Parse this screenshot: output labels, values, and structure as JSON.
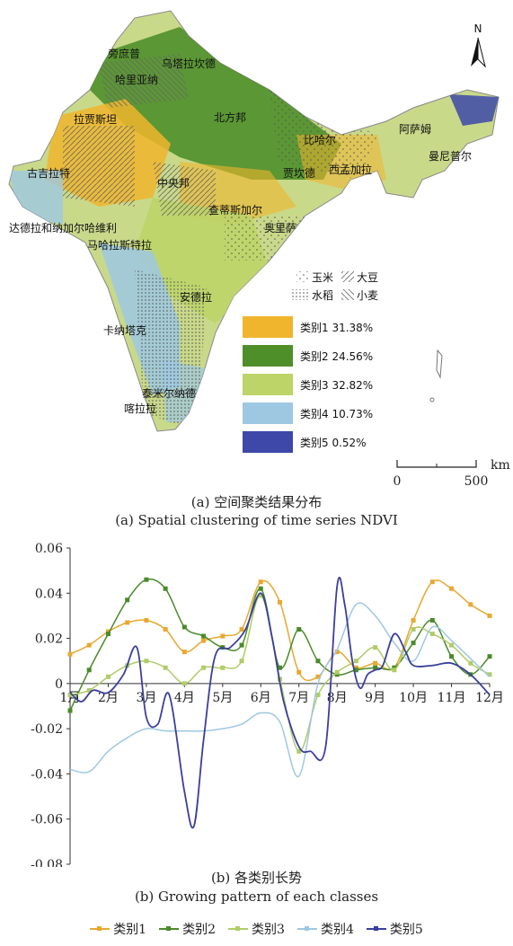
{
  "map": {
    "north_label": "N",
    "scale_unit": "km",
    "scale_ticks": [
      "0",
      "500"
    ],
    "region_labels": [
      {
        "text": "旁庶普"
      },
      {
        "text": "乌塔拉坎德"
      },
      {
        "text": "哈里亚纳"
      },
      {
        "text": "拉贾斯坦"
      },
      {
        "text": "北方邦"
      },
      {
        "text": "比哈尔"
      },
      {
        "text": "阿萨姆"
      },
      {
        "text": "曼尼普尔"
      },
      {
        "text": "古吉拉特"
      },
      {
        "text": "贾坎德"
      },
      {
        "text": "西孟加拉"
      },
      {
        "text": "中央邦"
      },
      {
        "text": "查蒂斯加尔"
      },
      {
        "text": "奥里萨"
      },
      {
        "text": "达德拉和纳加尔哈维利"
      },
      {
        "text": "马哈拉斯特拉"
      },
      {
        "text": "安德拉"
      },
      {
        "text": "卡纳塔克"
      },
      {
        "text": "泰米尔纳德"
      },
      {
        "text": "喀拉拉"
      }
    ],
    "crop_legend": [
      {
        "pattern": "dots-sparse",
        "label": "玉米"
      },
      {
        "pattern": "hatch-right",
        "label": "大豆"
      },
      {
        "pattern": "dots-dense",
        "label": "水稻"
      },
      {
        "pattern": "hatch-left",
        "label": "小麦"
      }
    ],
    "class_legend": [
      {
        "label": "类别1",
        "percent": "31.38%",
        "color": "#f0b52d"
      },
      {
        "label": "类别2",
        "percent": "24.56%",
        "color": "#4f8f2a"
      },
      {
        "label": "类别3",
        "percent": "32.82%",
        "color": "#bcd468"
      },
      {
        "label": "类别4",
        "percent": "10.73%",
        "color": "#9ec8e2"
      },
      {
        "label": "类别5",
        "percent": "0.52%",
        "color": "#3d48a8"
      }
    ]
  },
  "caption_a_cn": "(a) 空间聚类结果分布",
  "caption_a_en": "(a) Spatial clustering of time series NDVI",
  "caption_b_cn": "(b) 各类别长势",
  "caption_b_en": "(b) Growing pattern of each classes",
  "chart_data": {
    "type": "line",
    "categories": [
      "1月",
      "2月",
      "3月",
      "4月",
      "5月",
      "6月",
      "7月",
      "8月",
      "9月",
      "10月",
      "11月",
      "12月"
    ],
    "ylim": [
      -0.08,
      0.06
    ],
    "yticks": [
      "-0.08",
      "-0.06",
      "-0.04",
      "-0.02",
      "0",
      "0.02",
      "0.04",
      "0.06"
    ],
    "grid": false,
    "legend_position": "bottom",
    "series": [
      {
        "name": "类别1",
        "color": "#e8a830",
        "x": [
          1,
          1.5,
          2,
          2.5,
          3,
          3.5,
          4,
          4.5,
          5,
          5.5,
          6,
          6.5,
          7,
          7.5,
          8,
          8.5,
          9,
          9.5,
          10,
          10.5,
          11,
          11.5,
          12
        ],
        "values": [
          0.013,
          0.017,
          0.023,
          0.027,
          0.028,
          0.024,
          0.014,
          0.019,
          0.021,
          0.024,
          0.045,
          0.036,
          0.005,
          0.003,
          0.014,
          0.007,
          0.009,
          0.007,
          0.028,
          0.045,
          0.042,
          0.035,
          0.03
        ]
      },
      {
        "name": "类别2",
        "color": "#4a8a2a",
        "x": [
          1,
          1.5,
          2,
          2.5,
          3,
          3.5,
          4,
          4.5,
          5,
          5.5,
          6,
          6.5,
          7,
          7.5,
          8,
          8.5,
          9,
          9.5,
          10,
          10.5,
          11,
          11.5,
          12
        ],
        "values": [
          -0.012,
          0.006,
          0.022,
          0.037,
          0.046,
          0.042,
          0.025,
          0.021,
          0.016,
          0.017,
          0.042,
          0.007,
          0.024,
          0.01,
          0.004,
          0.006,
          0.007,
          0.007,
          0.018,
          0.028,
          0.012,
          0.004,
          0.012
        ]
      },
      {
        "name": "类别3",
        "color": "#b0cc68",
        "x": [
          1,
          1.5,
          2,
          2.5,
          3,
          3.5,
          4,
          4.5,
          5,
          5.5,
          6,
          6.5,
          7,
          7.5,
          8,
          8.5,
          9,
          9.5,
          10,
          10.5,
          11,
          11.5,
          12
        ],
        "values": [
          -0.005,
          -0.003,
          0.003,
          0.008,
          0.01,
          0.007,
          0.0,
          0.007,
          0.007,
          0.01,
          0.039,
          0.002,
          -0.03,
          -0.005,
          0.005,
          0.01,
          0.016,
          0.006,
          0.024,
          0.022,
          0.017,
          0.009,
          0.004
        ]
      },
      {
        "name": "类别4",
        "color": "#9ec8e2",
        "x": [
          1,
          1.5,
          2,
          2.5,
          3,
          3.5,
          4,
          4.5,
          5,
          5.5,
          6,
          6.5,
          7,
          7.5,
          8,
          8.5,
          9,
          9.5,
          10,
          10.5,
          11,
          11.5,
          12
        ],
        "values": [
          -0.038,
          -0.039,
          -0.03,
          -0.024,
          -0.02,
          -0.021,
          -0.021,
          -0.021,
          -0.02,
          -0.018,
          -0.013,
          -0.017,
          -0.041,
          0.0,
          0.015,
          0.035,
          0.03,
          0.018,
          0.01,
          0.025,
          0.019,
          0.011,
          0.003
        ]
      },
      {
        "name": "类别5",
        "color": "#3a3f9c",
        "x": [
          1,
          1.3,
          1.6,
          2,
          2.4,
          2.75,
          3,
          3.3,
          3.6,
          4,
          4.25,
          4.5,
          4.8,
          5.2,
          5.6,
          6,
          6.3,
          6.6,
          7,
          7.3,
          7.7,
          8,
          8.2,
          8.4,
          8.6,
          8.8,
          9,
          9.2,
          9.5,
          9.8,
          10,
          10.5,
          11,
          11.5,
          12
        ],
        "values": [
          -0.004,
          -0.008,
          -0.003,
          -0.004,
          0.004,
          0.016,
          -0.015,
          -0.018,
          -0.005,
          -0.048,
          -0.063,
          -0.025,
          0.012,
          0.016,
          0.024,
          0.04,
          0.02,
          -0.008,
          -0.028,
          -0.03,
          -0.028,
          0.043,
          0.035,
          0.01,
          -0.002,
          0.004,
          0.006,
          0.008,
          0.022,
          0.014,
          0.008,
          0.008,
          0.009,
          0.004,
          -0.005
        ]
      }
    ]
  }
}
